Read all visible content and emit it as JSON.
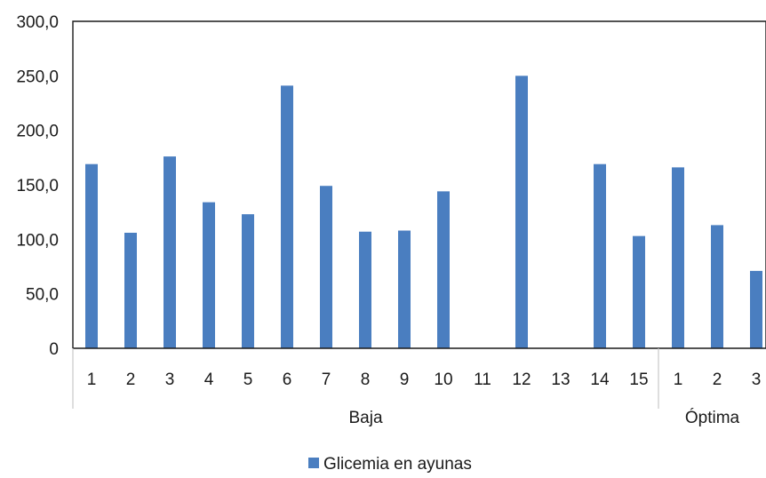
{
  "chart_data": {
    "type": "bar",
    "categories": [
      "1",
      "2",
      "3",
      "4",
      "5",
      "6",
      "7",
      "8",
      "9",
      "10",
      "11",
      "12",
      "13",
      "14",
      "15",
      "1",
      "2",
      "3"
    ],
    "groups": [
      {
        "label": "Baja",
        "count": 15
      },
      {
        "label": "Óptima",
        "count": 3
      }
    ],
    "series": [
      {
        "name": "Glicemia en ayunas",
        "color": "#4a7ec0",
        "values": [
          169,
          106,
          176,
          134,
          123,
          241,
          149,
          107,
          108,
          144,
          0,
          250,
          0,
          169,
          103,
          166,
          113,
          71
        ]
      }
    ],
    "ylim": [
      0,
      300
    ],
    "yticks": [
      "0",
      "50,0",
      "100,0",
      "150,0",
      "200,0",
      "250,0",
      "300,0"
    ],
    "grid": false,
    "legend_position": "bottom"
  }
}
